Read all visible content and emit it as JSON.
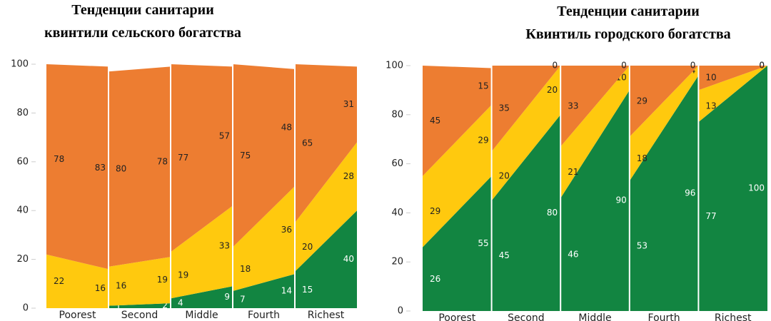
{
  "chart_data": [
    {
      "type": "stacked-area-panels",
      "title_lines": [
        "Тенденции санитарии",
        "квинтили сельского богатства"
      ],
      "categories": [
        "Poorest",
        "Second",
        "Middle",
        "Fourth",
        "Richest"
      ],
      "ylim": [
        0,
        100
      ],
      "yticks": [
        0,
        20,
        40,
        60,
        80,
        100
      ],
      "series": [
        {
          "color": "#128541",
          "values": [
            [
              0,
              0
            ],
            [
              1,
              2
            ],
            [
              4,
              9
            ],
            [
              7,
              14
            ],
            [
              15,
              40
            ]
          ]
        },
        {
          "color": "#ffc90e",
          "values": [
            [
              22,
              16
            ],
            [
              16,
              19
            ],
            [
              19,
              33
            ],
            [
              18,
              36
            ],
            [
              20,
              28
            ]
          ]
        },
        {
          "color": "#ed7d31",
          "values": [
            [
              78,
              83
            ],
            [
              80,
              78
            ],
            [
              77,
              57
            ],
            [
              75,
              48
            ],
            [
              65,
              31
            ]
          ]
        }
      ]
    },
    {
      "type": "stacked-area-panels",
      "title_lines": [
        "Тенденции санитарии",
        "Квинтиль городского богатства"
      ],
      "categories": [
        "Poorest",
        "Second",
        "Middle",
        "Fourth",
        "Richest"
      ],
      "ylim": [
        0,
        100
      ],
      "yticks": [
        0,
        20,
        40,
        60,
        80,
        100
      ],
      "series": [
        {
          "color": "#128541",
          "values": [
            [
              26,
              55
            ],
            [
              45,
              80
            ],
            [
              46,
              90
            ],
            [
              53,
              96
            ],
            [
              77,
              100
            ]
          ]
        },
        {
          "color": "#ffc90e",
          "values": [
            [
              29,
              29
            ],
            [
              20,
              20
            ],
            [
              21,
              10
            ],
            [
              18,
              4
            ],
            [
              13,
              0
            ]
          ]
        },
        {
          "color": "#ed7d31",
          "values": [
            [
              45,
              15
            ],
            [
              35,
              0
            ],
            [
              33,
              0
            ],
            [
              29,
              0
            ],
            [
              10,
              0
            ]
          ]
        }
      ]
    }
  ]
}
